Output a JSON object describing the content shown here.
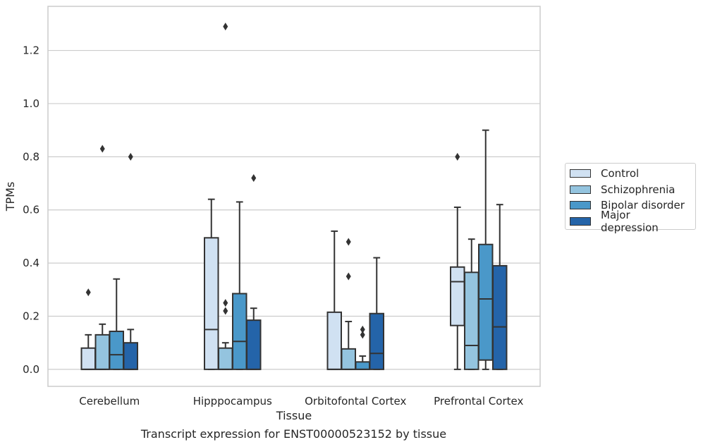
{
  "figure_caption": "Transcript expression for ENST00000523152 by tissue",
  "chart_data": {
    "type": "boxplot",
    "title": "",
    "xlabel": "Tissue",
    "ylabel": "TPMs",
    "ylim": [
      -0.064,
      1.366
    ],
    "yticks": [
      "0.0",
      "0.2",
      "0.4",
      "0.6",
      "0.8",
      "1.0",
      "1.2"
    ],
    "grid": "horizontal",
    "legend_position": "right",
    "categories": [
      "Cerebellum",
      "Hipppocampus",
      "Orbitofontal Cortex",
      "Prefrontal Cortex"
    ],
    "series": [
      {
        "name": "Control",
        "color": "#d0e1f2",
        "boxes": [
          {
            "whislo": 0.0,
            "q1": 0.0,
            "med": 0.0,
            "q3": 0.08,
            "whishi": 0.13,
            "fliers": [
              0.29
            ]
          },
          {
            "whislo": 0.0,
            "q1": 0.0,
            "med": 0.15,
            "q3": 0.495,
            "whishi": 0.64,
            "fliers": []
          },
          {
            "whislo": 0.0,
            "q1": 0.0,
            "med": 0.0,
            "q3": 0.215,
            "whishi": 0.52,
            "fliers": []
          },
          {
            "whislo": 0.0,
            "q1": 0.165,
            "med": 0.33,
            "q3": 0.385,
            "whishi": 0.61,
            "fliers": [
              0.8
            ]
          }
        ]
      },
      {
        "name": "Schizophrenia",
        "color": "#94c4df",
        "boxes": [
          {
            "whislo": 0.0,
            "q1": 0.0,
            "med": 0.0,
            "q3": 0.13,
            "whishi": 0.17,
            "fliers": [
              0.83
            ]
          },
          {
            "whislo": 0.0,
            "q1": 0.0,
            "med": 0.0,
            "q3": 0.08,
            "whishi": 0.1,
            "fliers": [
              1.29,
              0.25,
              0.22
            ]
          },
          {
            "whislo": 0.0,
            "q1": 0.0,
            "med": 0.0,
            "q3": 0.077,
            "whishi": 0.18,
            "fliers": [
              0.48,
              0.35
            ]
          },
          {
            "whislo": 0.0,
            "q1": 0.0,
            "med": 0.09,
            "q3": 0.365,
            "whishi": 0.49,
            "fliers": []
          }
        ]
      },
      {
        "name": "Bipolar disorder",
        "color": "#4a98c9",
        "boxes": [
          {
            "whislo": 0.0,
            "q1": 0.0,
            "med": 0.055,
            "q3": 0.143,
            "whishi": 0.34,
            "fliers": []
          },
          {
            "whislo": 0.0,
            "q1": 0.0,
            "med": 0.105,
            "q3": 0.285,
            "whishi": 0.63,
            "fliers": []
          },
          {
            "whislo": 0.0,
            "q1": 0.0,
            "med": 0.0,
            "q3": 0.028,
            "whishi": 0.05,
            "fliers": [
              0.15,
              0.13
            ]
          },
          {
            "whislo": 0.0,
            "q1": 0.035,
            "med": 0.265,
            "q3": 0.47,
            "whishi": 0.9,
            "fliers": []
          }
        ]
      },
      {
        "name": "Major depression",
        "color": "#2464a9",
        "boxes": [
          {
            "whislo": 0.0,
            "q1": 0.0,
            "med": 0.0,
            "q3": 0.1,
            "whishi": 0.15,
            "fliers": [
              0.8
            ]
          },
          {
            "whislo": 0.0,
            "q1": 0.0,
            "med": 0.0,
            "q3": 0.185,
            "whishi": 0.23,
            "fliers": [
              0.72
            ]
          },
          {
            "whislo": 0.0,
            "q1": 0.0,
            "med": 0.06,
            "q3": 0.21,
            "whishi": 0.42,
            "fliers": []
          },
          {
            "whislo": 0.0,
            "q1": 0.0,
            "med": 0.16,
            "q3": 0.39,
            "whishi": 0.62,
            "fliers": []
          }
        ]
      }
    ]
  }
}
